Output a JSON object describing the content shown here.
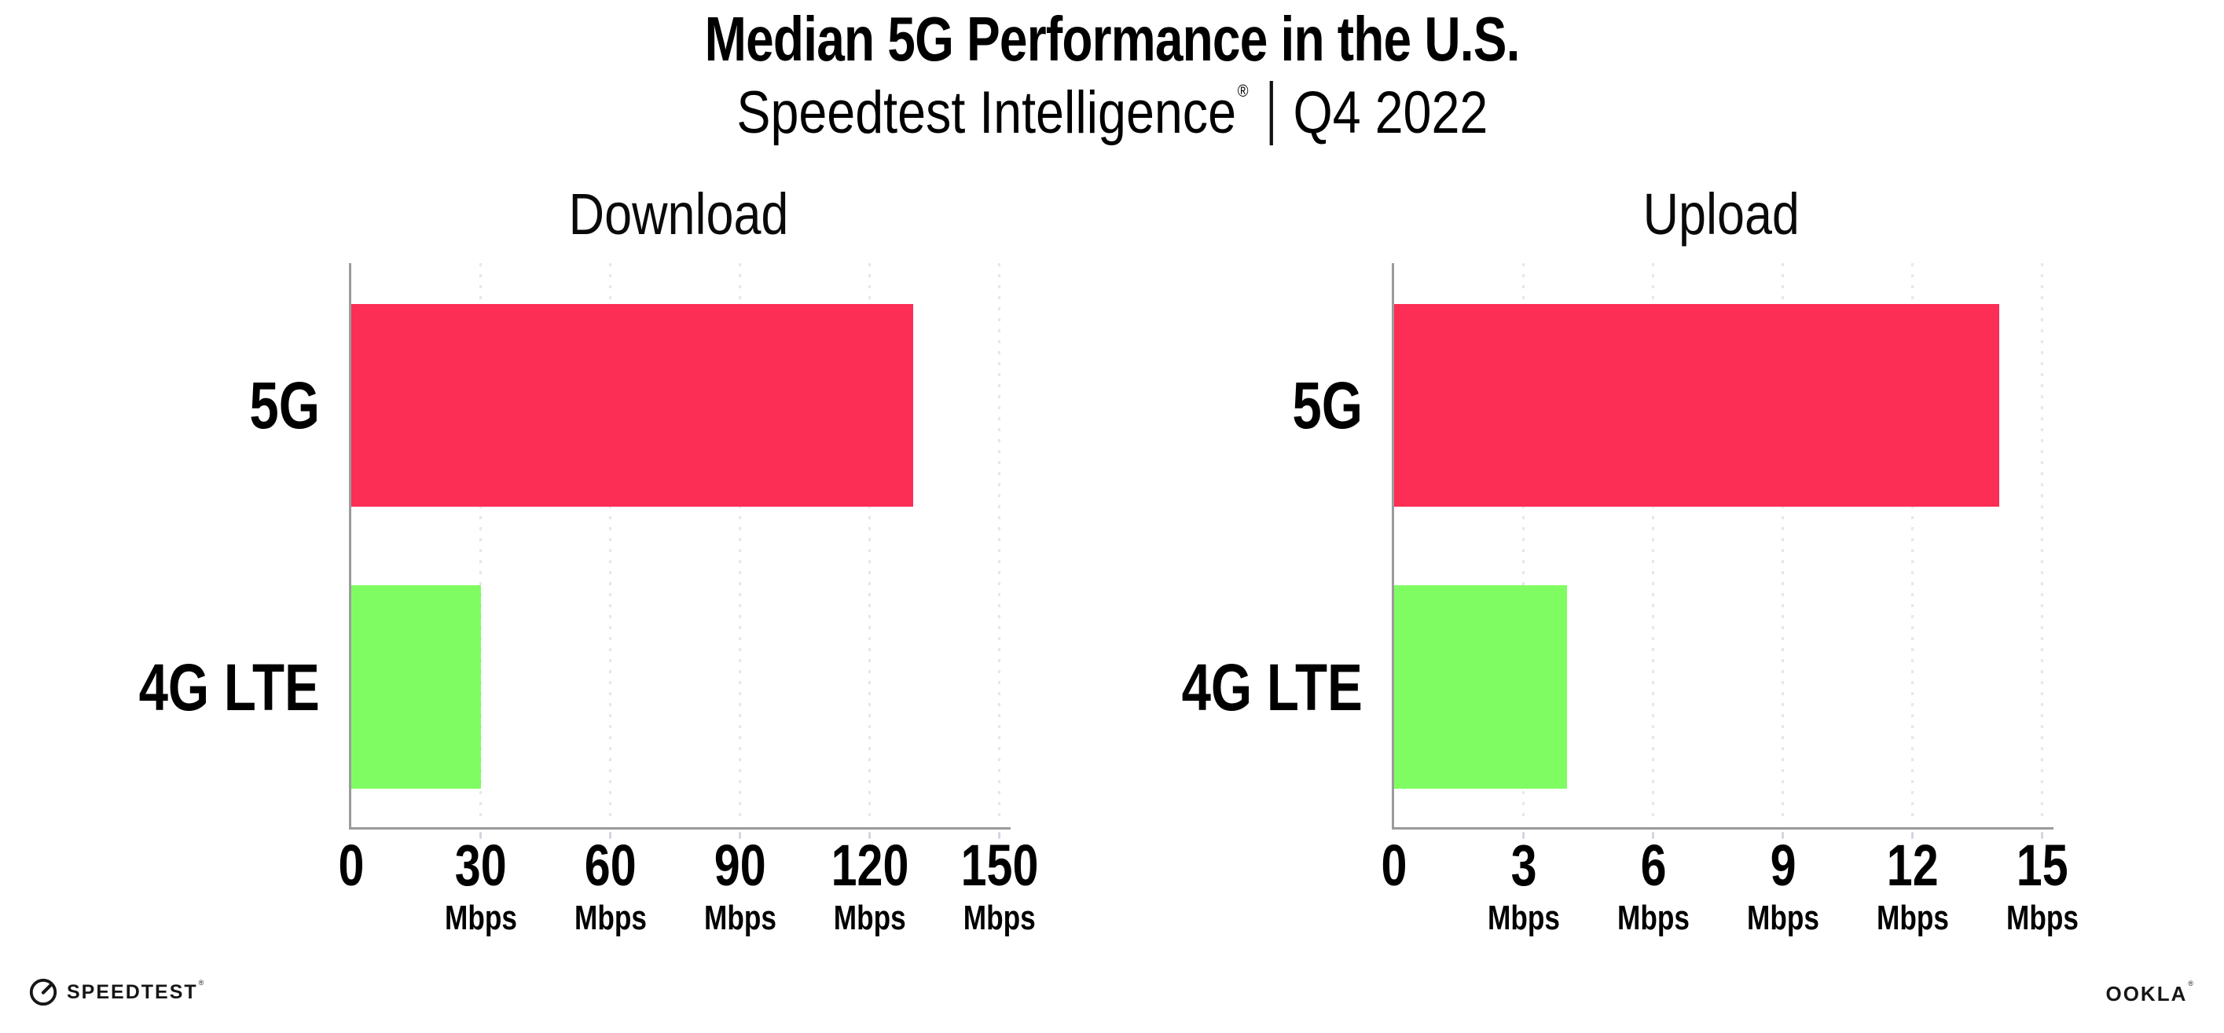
{
  "header": {
    "title": "Median 5G Performance in the U.S.",
    "subtitle_brand": "Speedtest Intelligence",
    "subtitle_reg": "®",
    "subtitle_period": "Q4 2022"
  },
  "colors": {
    "bar_5g": "#fc2e56",
    "bar_4g_lte": "#80fc63",
    "axis": "#9b9b9b",
    "gridline": "#e7e5ef",
    "text": "#000000"
  },
  "chart_data": [
    {
      "type": "bar",
      "orientation": "horizontal",
      "title": "Download",
      "categories": [
        "5G",
        "4G LTE"
      ],
      "values": [
        130,
        30
      ],
      "unit": "Mbps",
      "xlim": [
        0,
        150
      ],
      "xticks": [
        0,
        30,
        60,
        90,
        120,
        150
      ],
      "grid": "dotted-vertical",
      "legend": "none",
      "bar_colors": [
        "#fc2e56",
        "#80fc63"
      ]
    },
    {
      "type": "bar",
      "orientation": "horizontal",
      "title": "Upload",
      "categories": [
        "5G",
        "4G LTE"
      ],
      "values": [
        14,
        4
      ],
      "unit": "Mbps",
      "xlim": [
        0,
        15
      ],
      "xticks": [
        0,
        3,
        6,
        9,
        12,
        15
      ],
      "grid": "dotted-vertical",
      "legend": "none",
      "bar_colors": [
        "#fc2e56",
        "#80fc63"
      ]
    }
  ],
  "footer": {
    "speedtest_wordmark": "SPEEDTEST",
    "speedtest_reg": "®",
    "ookla_wordmark": "OOKLA",
    "ookla_reg": "®"
  }
}
